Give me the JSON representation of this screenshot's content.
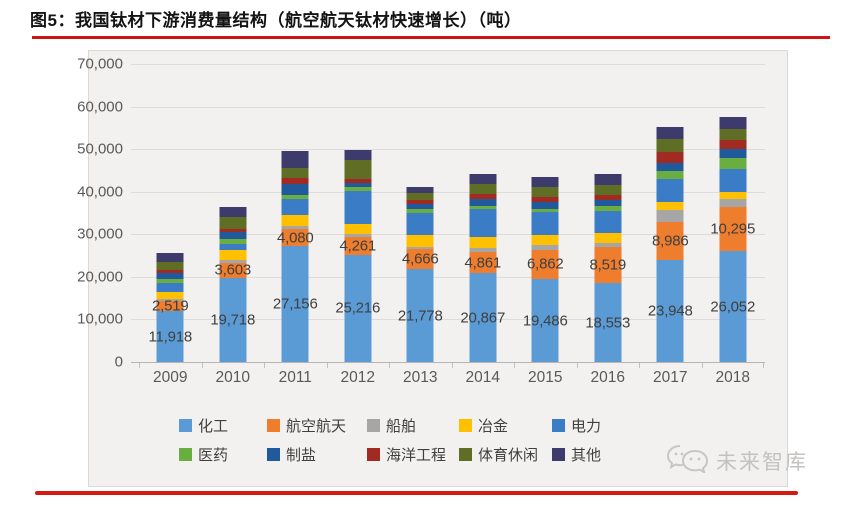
{
  "page": {
    "title": "图5：我国钛材下游消费量结构（航空航天钛材快速增长）（吨）"
  },
  "watermark": {
    "text": "未来智库"
  },
  "accent_colors": {
    "rule_red": "#cf1511",
    "chart_bg": "#f2f1ef"
  },
  "chart_data": {
    "type": "bar",
    "stacked": true,
    "title": "图5：我国钛材下游消费量结构（航空航天钛材快速增长）（吨）",
    "unit": "吨",
    "xlabel": "",
    "ylabel": "",
    "ylim": [
      0,
      70000
    ],
    "ytick_interval": 10000,
    "grid": true,
    "legend_position": "bottom",
    "categories": [
      "2009",
      "2010",
      "2011",
      "2012",
      "2013",
      "2014",
      "2015",
      "2016",
      "2017",
      "2018"
    ],
    "series": [
      {
        "name": "化工",
        "color": "#5b9bd5",
        "labeled": true,
        "values": [
          11918,
          19718,
          27156,
          25216,
          21778,
          20867,
          19486,
          18553,
          23948,
          26052
        ]
      },
      {
        "name": "航空航天",
        "color": "#ee7d2e",
        "labeled": true,
        "values": [
          2519,
          3603,
          4080,
          4261,
          4666,
          4861,
          6862,
          8519,
          8986,
          10295
        ]
      },
      {
        "name": "船舶",
        "color": "#a6a6a6",
        "labeled": false,
        "values": [
          300,
          600,
          800,
          600,
          600,
          1000,
          1100,
          1000,
          2700,
          1900
        ]
      },
      {
        "name": "冶金",
        "color": "#ffc000",
        "labeled": false,
        "values": [
          1800,
          2350,
          2500,
          2400,
          2800,
          2700,
          2300,
          2300,
          1900,
          1600
        ]
      },
      {
        "name": "电力",
        "color": "#3a7dc6",
        "labeled": false,
        "values": [
          2000,
          1560,
          3800,
          7800,
          5200,
          6500,
          5500,
          5100,
          5500,
          5500
        ]
      },
      {
        "name": "医药",
        "color": "#6aae3f",
        "labeled": false,
        "values": [
          900,
          1175,
          1000,
          800,
          800,
          800,
          800,
          1100,
          1900,
          2700
        ]
      },
      {
        "name": "制盐",
        "color": "#215a9c",
        "labeled": false,
        "values": [
          1400,
          1570,
          2600,
          1000,
          1400,
          1600,
          1600,
          1500,
          1900,
          1900
        ]
      },
      {
        "name": "海洋工程",
        "color": "#a12b22",
        "labeled": false,
        "values": [
          700,
          780,
          1400,
          950,
          800,
          1200,
          1200,
          1200,
          2400,
          2200
        ]
      },
      {
        "name": "体育休闲",
        "color": "#5f6e24",
        "labeled": false,
        "values": [
          1900,
          2750,
          2300,
          4400,
          1600,
          2300,
          2300,
          2400,
          3100,
          2500
        ]
      },
      {
        "name": "其他",
        "color": "#3d3b6b",
        "labeled": false,
        "values": [
          2100,
          2350,
          4000,
          2500,
          1600,
          2300,
          2300,
          2400,
          2800,
          2900
        ]
      }
    ]
  }
}
